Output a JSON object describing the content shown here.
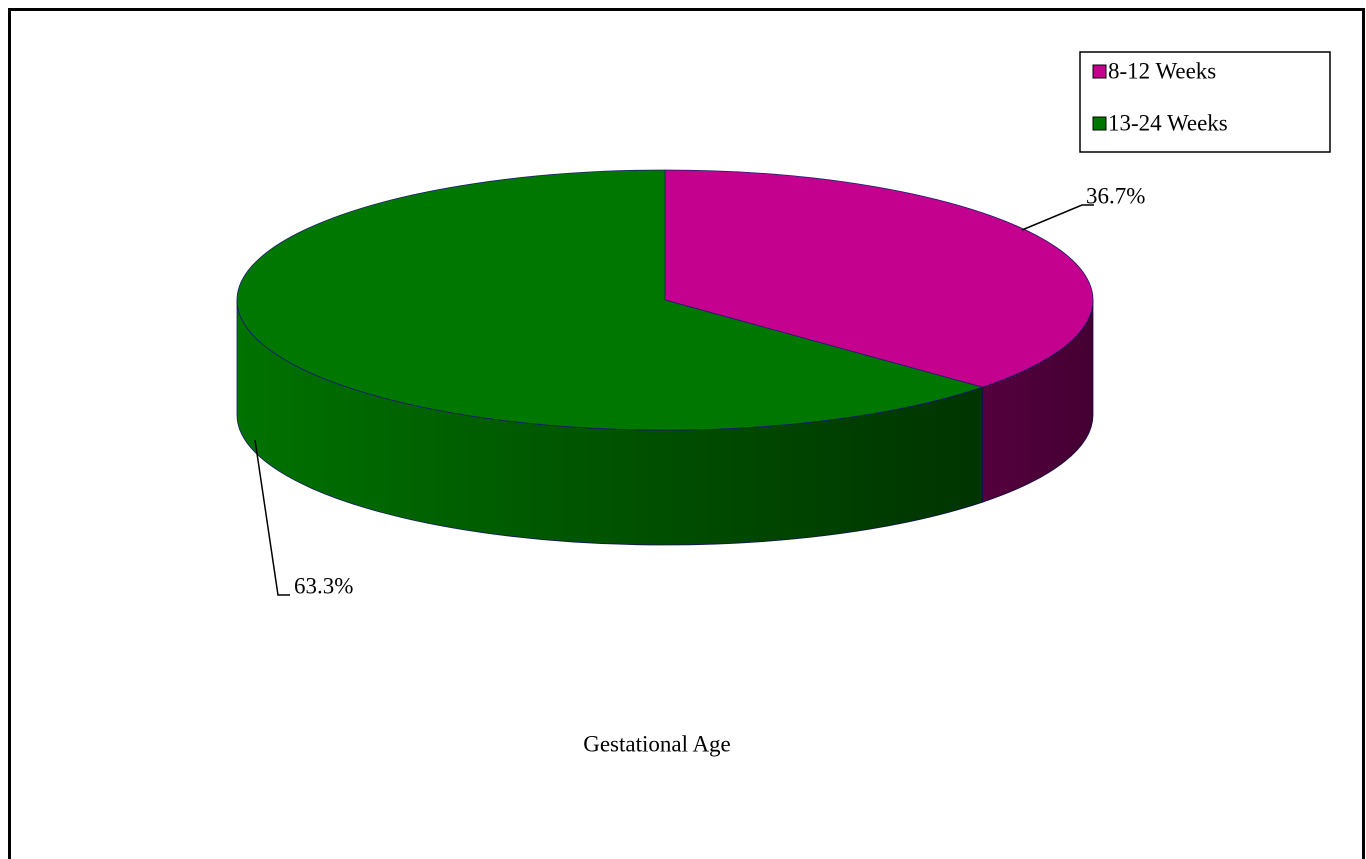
{
  "chart_data": {
    "type": "pie3d",
    "title": "Gestational Age",
    "categories": [
      "8-12 Weeks",
      "13-24 Weeks"
    ],
    "values": [
      36.7,
      63.3
    ],
    "value_labels": [
      "36.7%",
      "63.3%"
    ],
    "colors": [
      "#c4008f",
      "#007800"
    ],
    "legend": "top-right"
  }
}
